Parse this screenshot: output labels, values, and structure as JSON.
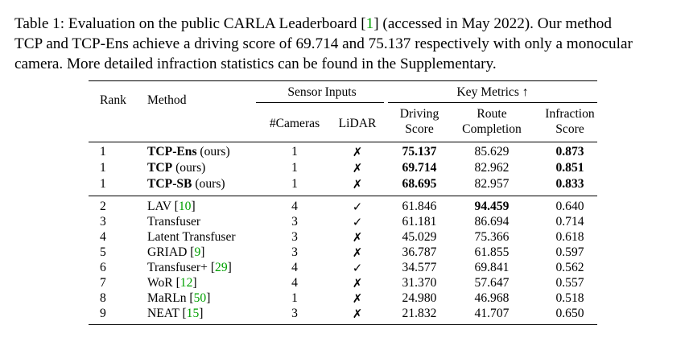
{
  "caption": {
    "line1_before_cite": "Table 1: Evaluation on the public CARLA Leaderboard [",
    "line1_cite": "1",
    "line1_after_cite": "] (accessed in May 2022). Our method",
    "line2": "TCP and TCP-Ens achieve a driving score of 69.714 and 75.137 respectively with only a monocular",
    "line3": "camera. More detailed infraction statistics can be found in the Supplementary."
  },
  "headers": {
    "rank": "Rank",
    "method": "Method",
    "sensor_inputs": "Sensor Inputs",
    "cameras": "#Cameras",
    "lidar": "LiDAR",
    "key_metrics": "Key Metrics ↑",
    "driving_1": "Driving",
    "driving_2": "Score",
    "route_1": "Route",
    "route_2": "Completion",
    "infraction_1": "Infraction",
    "infraction_2": "Score"
  },
  "ours_rows": [
    {
      "rank": "1",
      "name": "TCP-Ens",
      "suffix": " (ours)",
      "cameras": "1",
      "lidar": "✗",
      "driving": "75.137",
      "route": "85.629",
      "infraction": "0.873"
    },
    {
      "rank": "1",
      "name": "TCP",
      "suffix": " (ours)",
      "cameras": "1",
      "lidar": "✗",
      "driving": "69.714",
      "route": "82.962",
      "infraction": "0.851"
    },
    {
      "rank": "1",
      "name": "TCP-SB",
      "suffix": " (ours)",
      "cameras": "1",
      "lidar": "✗",
      "driving": "68.695",
      "route": "82.957",
      "infraction": "0.833"
    }
  ],
  "other_rows": [
    {
      "rank": "2",
      "name": "LAV ",
      "cite": "10",
      "cameras": "4",
      "lidar": "✓",
      "driving": "61.846",
      "route": "94.459",
      "infraction": "0.640"
    },
    {
      "rank": "3",
      "name": "Transfuser",
      "cite": "",
      "cameras": "3",
      "lidar": "✓",
      "driving": "61.181",
      "route": "86.694",
      "infraction": "0.714"
    },
    {
      "rank": "4",
      "name": "Latent Transfuser",
      "cite": "",
      "cameras": "3",
      "lidar": "✗",
      "driving": "45.029",
      "route": "75.366",
      "infraction": "0.618"
    },
    {
      "rank": "5",
      "name": "GRIAD ",
      "cite": "9",
      "cameras": "3",
      "lidar": "✗",
      "driving": "36.787",
      "route": "61.855",
      "infraction": "0.597"
    },
    {
      "rank": "6",
      "name": "Transfuser+ ",
      "cite": "29",
      "cameras": "4",
      "lidar": "✓",
      "driving": "34.577",
      "route": "69.841",
      "infraction": "0.562"
    },
    {
      "rank": "7",
      "name": "WoR ",
      "cite": "12",
      "cameras": "4",
      "lidar": "✗",
      "driving": "31.370",
      "route": "57.647",
      "infraction": "0.557"
    },
    {
      "rank": "8",
      "name": "MaRLn ",
      "cite": "50",
      "cameras": "1",
      "lidar": "✗",
      "driving": "24.980",
      "route": "46.968",
      "infraction": "0.518"
    },
    {
      "rank": "9",
      "name": "NEAT ",
      "cite": "15",
      "cameras": "3",
      "lidar": "✗",
      "driving": "21.832",
      "route": "41.707",
      "infraction": "0.650"
    }
  ]
}
